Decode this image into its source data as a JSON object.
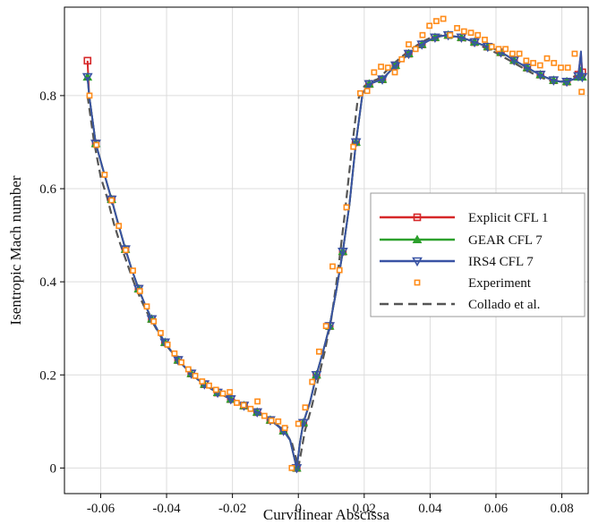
{
  "chart_data": {
    "type": "line",
    "title": "",
    "xlabel": "Curvilinear Abscissa",
    "ylabel": "Isentropic Mach number",
    "xlim": [
      -0.071,
      0.088
    ],
    "ylim": [
      -0.055,
      0.99
    ],
    "xticks": [
      -0.06,
      -0.04,
      -0.02,
      0,
      0.02,
      0.04,
      0.06,
      0.08
    ],
    "xtick_labels": [
      "-0.06",
      "-0.04",
      "-0.02",
      "0",
      "0.02",
      "0.04",
      "0.06",
      "0.08"
    ],
    "yticks": [
      0,
      0.2,
      0.4,
      0.6,
      0.8
    ],
    "ytick_labels": [
      "0",
      "0.2",
      "0.4",
      "0.6",
      "0.8"
    ],
    "grid": true,
    "legend_position": "center-right",
    "series": [
      {
        "name": "Explicit  CFL 1",
        "color": "#d62728",
        "marker": "square",
        "x": [
          -0.064,
          -0.0635,
          -0.0615,
          -0.059,
          -0.0567,
          -0.0545,
          -0.0525,
          -0.0505,
          -0.0485,
          -0.0465,
          -0.0445,
          -0.0425,
          -0.0405,
          -0.0385,
          -0.0365,
          -0.0345,
          -0.0325,
          -0.0305,
          -0.0285,
          -0.0265,
          -0.0245,
          -0.0225,
          -0.0205,
          -0.0185,
          -0.0165,
          -0.0145,
          -0.0125,
          -0.0105,
          -0.0085,
          -0.0065,
          -0.0045,
          -0.0025,
          -0.0005,
          0.0005,
          0.0015,
          0.0035,
          0.0055,
          0.0075,
          0.0095,
          0.0115,
          0.0135,
          0.0155,
          0.0175,
          0.0195,
          0.0215,
          0.0235,
          0.0255,
          0.0275,
          0.0295,
          0.0315,
          0.0335,
          0.0355,
          0.0375,
          0.0395,
          0.0415,
          0.0435,
          0.0455,
          0.0475,
          0.0495,
          0.0515,
          0.0535,
          0.0555,
          0.0575,
          0.0595,
          0.0615,
          0.0635,
          0.0655,
          0.0675,
          0.0695,
          0.0715,
          0.0735,
          0.0755,
          0.0775,
          0.0795,
          0.0815,
          0.0835,
          0.085,
          0.0858,
          0.0862
        ],
        "y": [
          0.875,
          0.8,
          0.697,
          0.634,
          0.577,
          0.52,
          0.47,
          0.425,
          0.385,
          0.35,
          0.32,
          0.293,
          0.27,
          0.25,
          0.232,
          0.217,
          0.203,
          0.19,
          0.18,
          0.17,
          0.162,
          0.155,
          0.148,
          0.141,
          0.134,
          0.127,
          0.12,
          0.112,
          0.103,
          0.092,
          0.08,
          0.06,
          0.0,
          0.055,
          0.097,
          0.14,
          0.2,
          0.25,
          0.305,
          0.38,
          0.465,
          0.565,
          0.7,
          0.805,
          0.825,
          0.83,
          0.835,
          0.85,
          0.865,
          0.877,
          0.89,
          0.9,
          0.91,
          0.918,
          0.925,
          0.928,
          0.93,
          0.927,
          0.925,
          0.92,
          0.915,
          0.91,
          0.905,
          0.9,
          0.893,
          0.885,
          0.876,
          0.868,
          0.86,
          0.852,
          0.845,
          0.838,
          0.833,
          0.83,
          0.83,
          0.835,
          0.845,
          0.89,
          0.85
        ]
      },
      {
        "name": "GEAR   CFL 7",
        "color": "#2ca02c",
        "marker": "triangle-up",
        "x": [
          -0.064,
          -0.0635,
          -0.0615,
          -0.059,
          -0.0567,
          -0.0545,
          -0.0525,
          -0.0505,
          -0.0485,
          -0.0465,
          -0.0445,
          -0.0425,
          -0.0405,
          -0.0385,
          -0.0365,
          -0.0345,
          -0.0325,
          -0.0305,
          -0.0285,
          -0.0265,
          -0.0245,
          -0.0225,
          -0.0205,
          -0.0185,
          -0.0165,
          -0.0145,
          -0.0125,
          -0.0105,
          -0.0085,
          -0.0065,
          -0.0045,
          -0.0025,
          -0.0005,
          0.0005,
          0.0015,
          0.0035,
          0.0055,
          0.0075,
          0.0095,
          0.0115,
          0.0135,
          0.0155,
          0.0175,
          0.0195,
          0.0215,
          0.0235,
          0.0255,
          0.0275,
          0.0295,
          0.0315,
          0.0335,
          0.0355,
          0.0375,
          0.0395,
          0.0415,
          0.0435,
          0.0455,
          0.0475,
          0.0495,
          0.0515,
          0.0535,
          0.0555,
          0.0575,
          0.0595,
          0.0615,
          0.0635,
          0.0655,
          0.0675,
          0.0695,
          0.0715,
          0.0735,
          0.0755,
          0.0775,
          0.0795,
          0.0815,
          0.0835,
          0.085,
          0.0858,
          0.0862
        ],
        "y": [
          0.84,
          0.8,
          0.697,
          0.634,
          0.577,
          0.52,
          0.47,
          0.425,
          0.385,
          0.35,
          0.32,
          0.293,
          0.27,
          0.25,
          0.232,
          0.217,
          0.203,
          0.19,
          0.18,
          0.17,
          0.162,
          0.155,
          0.148,
          0.141,
          0.134,
          0.127,
          0.12,
          0.112,
          0.103,
          0.092,
          0.08,
          0.06,
          0.0,
          0.055,
          0.097,
          0.14,
          0.2,
          0.25,
          0.305,
          0.38,
          0.465,
          0.565,
          0.7,
          0.805,
          0.825,
          0.83,
          0.835,
          0.85,
          0.865,
          0.877,
          0.89,
          0.9,
          0.91,
          0.918,
          0.925,
          0.928,
          0.93,
          0.927,
          0.925,
          0.92,
          0.915,
          0.91,
          0.905,
          0.9,
          0.893,
          0.885,
          0.876,
          0.868,
          0.86,
          0.852,
          0.845,
          0.838,
          0.833,
          0.83,
          0.83,
          0.835,
          0.84,
          0.86,
          0.84
        ]
      },
      {
        "name": "IRS4      CFL 7",
        "color": "#3953a4",
        "marker": "triangle-down",
        "x": [
          -0.064,
          -0.0635,
          -0.0615,
          -0.059,
          -0.0567,
          -0.0545,
          -0.0525,
          -0.0505,
          -0.0485,
          -0.0465,
          -0.0445,
          -0.0425,
          -0.0405,
          -0.0385,
          -0.0365,
          -0.0345,
          -0.0325,
          -0.0305,
          -0.0285,
          -0.0265,
          -0.0245,
          -0.0225,
          -0.0205,
          -0.0185,
          -0.0165,
          -0.0145,
          -0.0125,
          -0.0105,
          -0.0085,
          -0.0065,
          -0.0045,
          -0.0025,
          -0.0005,
          0.0005,
          0.0015,
          0.0035,
          0.0055,
          0.0075,
          0.0095,
          0.0115,
          0.0135,
          0.0155,
          0.0175,
          0.0195,
          0.0215,
          0.0235,
          0.0255,
          0.0275,
          0.0295,
          0.0315,
          0.0335,
          0.0355,
          0.0375,
          0.0395,
          0.0415,
          0.0435,
          0.0455,
          0.0475,
          0.0495,
          0.0515,
          0.0535,
          0.0555,
          0.0575,
          0.0595,
          0.0615,
          0.0635,
          0.0655,
          0.0675,
          0.0695,
          0.0715,
          0.0735,
          0.0755,
          0.0775,
          0.0795,
          0.0815,
          0.0835,
          0.085,
          0.0858,
          0.0862
        ],
        "y": [
          0.84,
          0.8,
          0.697,
          0.634,
          0.577,
          0.52,
          0.47,
          0.425,
          0.385,
          0.35,
          0.32,
          0.293,
          0.27,
          0.25,
          0.232,
          0.217,
          0.203,
          0.19,
          0.18,
          0.17,
          0.162,
          0.155,
          0.148,
          0.141,
          0.134,
          0.127,
          0.12,
          0.112,
          0.103,
          0.092,
          0.08,
          0.06,
          0.0,
          0.055,
          0.097,
          0.14,
          0.2,
          0.25,
          0.305,
          0.38,
          0.465,
          0.565,
          0.7,
          0.805,
          0.825,
          0.83,
          0.835,
          0.85,
          0.865,
          0.877,
          0.89,
          0.9,
          0.91,
          0.918,
          0.925,
          0.928,
          0.93,
          0.927,
          0.925,
          0.92,
          0.915,
          0.91,
          0.905,
          0.9,
          0.893,
          0.885,
          0.876,
          0.868,
          0.86,
          0.852,
          0.845,
          0.838,
          0.833,
          0.83,
          0.83,
          0.835,
          0.842,
          0.895,
          0.84
        ]
      },
      {
        "name": "Experiment",
        "color": "#ff8c1a",
        "marker": "small-square",
        "x": [
          -0.0634,
          -0.0613,
          -0.0588,
          -0.0567,
          -0.0545,
          -0.0524,
          -0.0502,
          -0.0481,
          -0.046,
          -0.0439,
          -0.0418,
          -0.0397,
          -0.0376,
          -0.0355,
          -0.0334,
          -0.0313,
          -0.0292,
          -0.0271,
          -0.025,
          -0.0229,
          -0.0208,
          -0.0187,
          -0.0166,
          -0.0145,
          -0.0124,
          -0.0103,
          -0.0082,
          -0.0061,
          -0.0041,
          -0.002,
          0.0,
          0.0021,
          0.0042,
          0.0063,
          0.0084,
          0.0104,
          0.0125,
          0.0146,
          0.0167,
          0.0188,
          0.0209,
          0.023,
          0.0251,
          0.0272,
          0.0293,
          0.0314,
          0.0335,
          0.0356,
          0.0377,
          0.0398,
          0.0419,
          0.044,
          0.0461,
          0.0482,
          0.0503,
          0.0524,
          0.0545,
          0.0566,
          0.0587,
          0.0608,
          0.0629,
          0.065,
          0.0671,
          0.0692,
          0.0713,
          0.0734,
          0.0755,
          0.0776,
          0.0797,
          0.0818,
          0.0839,
          0.086
        ],
        "y": [
          0.8,
          0.694,
          0.63,
          0.575,
          0.52,
          0.468,
          0.424,
          0.38,
          0.347,
          0.315,
          0.29,
          0.265,
          0.246,
          0.227,
          0.212,
          0.198,
          0.186,
          0.177,
          0.168,
          0.16,
          0.163,
          0.14,
          0.135,
          0.127,
          0.143,
          0.112,
          0.102,
          0.1,
          0.086,
          0.0,
          0.095,
          0.13,
          0.185,
          0.25,
          0.305,
          0.433,
          0.425,
          0.56,
          0.69,
          0.805,
          0.81,
          0.85,
          0.862,
          0.86,
          0.85,
          0.878,
          0.91,
          0.9,
          0.93,
          0.95,
          0.96,
          0.965,
          0.93,
          0.945,
          0.938,
          0.935,
          0.93,
          0.92,
          0.905,
          0.9,
          0.9,
          0.89,
          0.89,
          0.875,
          0.87,
          0.865,
          0.88,
          0.87,
          0.86,
          0.86,
          0.89,
          0.808
        ]
      },
      {
        "name": "Collado et al.",
        "color": "#555555",
        "marker": "none",
        "dashed": true,
        "x": [
          -0.064,
          -0.062,
          -0.06,
          -0.058,
          -0.056,
          -0.054,
          -0.052,
          -0.05,
          -0.048,
          -0.046,
          -0.044,
          -0.042,
          -0.04,
          -0.038,
          -0.036,
          -0.034,
          -0.032,
          -0.03,
          -0.028,
          -0.026,
          -0.024,
          -0.022,
          -0.02,
          -0.018,
          -0.016,
          -0.014,
          -0.012,
          -0.01,
          -0.008,
          -0.006,
          -0.004,
          -0.002,
          -0.001,
          0.0,
          0.001,
          0.002,
          0.004,
          0.006,
          0.008,
          0.01,
          0.012,
          0.014,
          0.016,
          0.018,
          0.02,
          0.022,
          0.024,
          0.026,
          0.028,
          0.03,
          0.032,
          0.034,
          0.036,
          0.038,
          0.04,
          0.042,
          0.044,
          0.046,
          0.048,
          0.05,
          0.052,
          0.054,
          0.056,
          0.058,
          0.06,
          0.062,
          0.064,
          0.066,
          0.068,
          0.07,
          0.072,
          0.074,
          0.076,
          0.078,
          0.08,
          0.082,
          0.084,
          0.086
        ],
        "y": [
          0.8,
          0.7,
          0.625,
          0.58,
          0.525,
          0.48,
          0.44,
          0.4,
          0.365,
          0.335,
          0.31,
          0.285,
          0.263,
          0.245,
          0.228,
          0.214,
          0.2,
          0.19,
          0.18,
          0.17,
          0.163,
          0.155,
          0.148,
          0.141,
          0.134,
          0.127,
          0.12,
          0.112,
          0.103,
          0.09,
          0.078,
          0.055,
          0.03,
          0.0,
          0.04,
          0.08,
          0.13,
          0.19,
          0.25,
          0.32,
          0.42,
          0.54,
          0.67,
          0.79,
          0.82,
          0.83,
          0.835,
          0.848,
          0.862,
          0.875,
          0.887,
          0.898,
          0.908,
          0.917,
          0.924,
          0.928,
          0.93,
          0.928,
          0.925,
          0.92,
          0.915,
          0.91,
          0.905,
          0.898,
          0.892,
          0.884,
          0.876,
          0.868,
          0.86,
          0.852,
          0.844,
          0.838,
          0.833,
          0.83,
          0.83,
          0.835,
          0.842,
          0.845
        ]
      }
    ]
  }
}
